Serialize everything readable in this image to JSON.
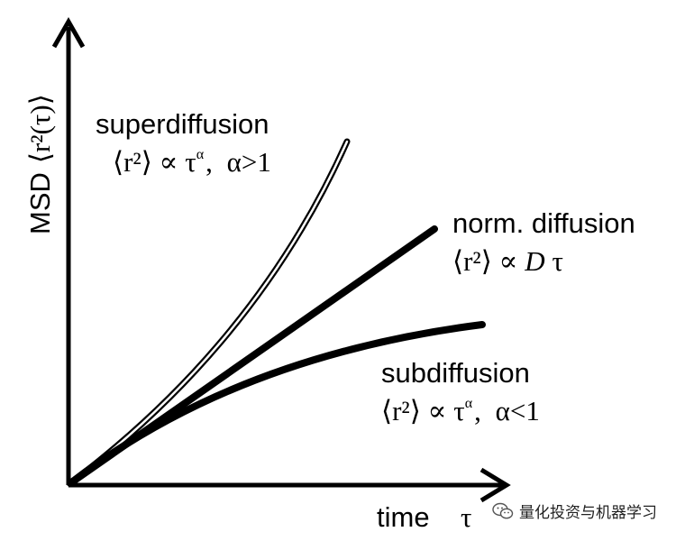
{
  "axes": {
    "y_label_main": "MSD",
    "y_label_formula": "⟨r²(τ)⟩",
    "x_label_main": "time",
    "x_label_symbol": "τ"
  },
  "curves": {
    "superdiffusion": {
      "name": "superdiffusion",
      "formula_left": "⟨r²⟩ ∝ τ",
      "exponent": "α",
      "condition": "α>1"
    },
    "normal": {
      "name": "norm. diffusion",
      "formula_left": "⟨r²⟩ ∝ ",
      "formula_d": "D",
      "formula_tau": " τ"
    },
    "subdiffusion": {
      "name": "subdiffusion",
      "formula_left": "⟨r²⟩ ∝ τ",
      "exponent": "α",
      "condition": "α<1"
    }
  },
  "watermark": {
    "text": "量化投资与机器学习",
    "icon": "wechat-icon"
  }
}
